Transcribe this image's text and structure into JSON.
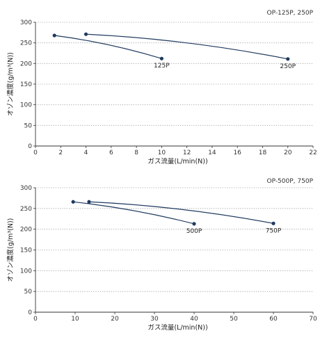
{
  "colors": {
    "series": "#1f3a5f",
    "grid": "#9a9a9a",
    "axis": "#333333"
  },
  "chart_data": [
    {
      "type": "line",
      "title": "OP-125P, 250P",
      "xlabel": "ガス流量(L/min(N))",
      "ylabel": "オゾン濃度(g/m³(N))",
      "xlim": [
        0,
        22
      ],
      "ylim": [
        0,
        300
      ],
      "xticks": [
        0,
        2,
        4,
        6,
        8,
        10,
        12,
        14,
        16,
        18,
        20,
        22
      ],
      "yticks": [
        0,
        50,
        100,
        150,
        200,
        250,
        300
      ],
      "grid": "horizontal-dotted",
      "series": [
        {
          "label": "125P",
          "x": [
            1.5,
            10
          ],
          "y": [
            268,
            212
          ],
          "bend": 0.4
        },
        {
          "label": "250P",
          "x": [
            4,
            20
          ],
          "y": [
            271,
            211
          ],
          "bend": 0.3
        }
      ]
    },
    {
      "type": "line",
      "title": "OP-500P, 750P",
      "xlabel": "ガス流量(L/min(N))",
      "ylabel": "オゾン濃度(g/m³(N))",
      "xlim": [
        0,
        70
      ],
      "ylim": [
        0,
        300
      ],
      "xticks": [
        0,
        10,
        20,
        30,
        40,
        50,
        60,
        70
      ],
      "yticks": [
        0,
        50,
        100,
        150,
        200,
        250,
        300
      ],
      "grid": "horizontal-dotted",
      "series": [
        {
          "label": "500P",
          "x": [
            9.5,
            40
          ],
          "y": [
            266,
            213
          ],
          "bend": 0.4
        },
        {
          "label": "750P",
          "x": [
            13.5,
            60
          ],
          "y": [
            266,
            214
          ],
          "bend": 0.3
        }
      ]
    }
  ]
}
